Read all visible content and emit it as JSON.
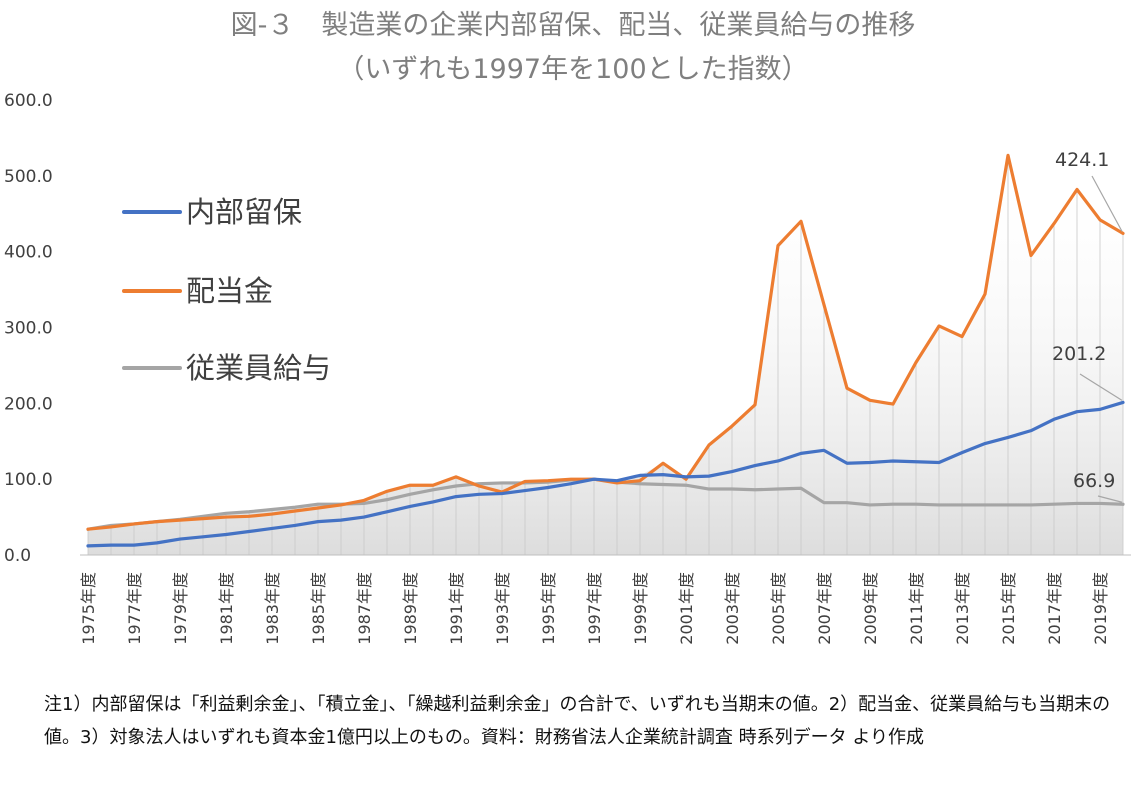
{
  "chart_data": {
    "type": "line",
    "title": "図-３　製造業の企業内部留保、配当、従業員給与の推移",
    "subtitle": "（いずれも1997年を100とした指数）",
    "ylim": [
      0,
      600
    ],
    "yticks": [
      "0.0",
      "100.0",
      "200.0",
      "300.0",
      "400.0",
      "500.0",
      "600.0"
    ],
    "ytick_values": [
      0,
      100,
      200,
      300,
      400,
      500,
      600
    ],
    "x": [
      "1975年度",
      "1976年度",
      "1977年度",
      "1978年度",
      "1979年度",
      "1980年度",
      "1981年度",
      "1982年度",
      "1983年度",
      "1984年度",
      "1985年度",
      "1986年度",
      "1987年度",
      "1988年度",
      "1989年度",
      "1990年度",
      "1991年度",
      "1992年度",
      "1993年度",
      "1994年度",
      "1995年度",
      "1996年度",
      "1997年度",
      "1998年度",
      "1999年度",
      "2000年度",
      "2001年度",
      "2002年度",
      "2003年度",
      "2004年度",
      "2005年度",
      "2006年度",
      "2007年度",
      "2008年度",
      "2009年度",
      "2010年度",
      "2011年度",
      "2012年度",
      "2013年度",
      "2014年度",
      "2015年度",
      "2016年度",
      "2017年度",
      "2018年度",
      "2019年度",
      "2020年度"
    ],
    "xtick_labels_shown": [
      "1975年度",
      "1977年度",
      "1979年度",
      "1981年度",
      "1983年度",
      "1985年度",
      "1987年度",
      "1989年度",
      "1991年度",
      "1993年度",
      "1995年度",
      "1997年度",
      "1999年度",
      "2001年度",
      "2003年度",
      "2005年度",
      "2007年度",
      "2009年度",
      "2011年度",
      "2013年度",
      "2015年度",
      "2017年度",
      "2019年度"
    ],
    "series": [
      {
        "name": "内部留保",
        "color": "#4472c4",
        "values": [
          12,
          13,
          13,
          16,
          21,
          24,
          27,
          31,
          35,
          39,
          44,
          46,
          50,
          57,
          64,
          70,
          77,
          80,
          81,
          85,
          89,
          94,
          100,
          98,
          105,
          106,
          103,
          104,
          110,
          118,
          124,
          134,
          138,
          121,
          122,
          124,
          123,
          122,
          135,
          147,
          155,
          164,
          179,
          189,
          192,
          201.2
        ]
      },
      {
        "name": "配当金",
        "color": "#ed7d31",
        "values": [
          34,
          37,
          41,
          44,
          46,
          48,
          50,
          51,
          54,
          58,
          62,
          66,
          72,
          84,
          92,
          92,
          103,
          91,
          83,
          97,
          98,
          100,
          100,
          95,
          98,
          121,
          100,
          145,
          170,
          198,
          408,
          440,
          330,
          220,
          204,
          199,
          254,
          302,
          288,
          344,
          527,
          395,
          437,
          482,
          442,
          424.1
        ]
      },
      {
        "name": "従業員給与",
        "color": "#a5a5a5",
        "values": [
          34,
          39,
          41,
          44,
          47,
          51,
          55,
          57,
          60,
          63,
          67,
          67,
          68,
          73,
          80,
          86,
          91,
          94,
          95,
          95,
          96,
          99,
          100,
          96,
          94,
          93,
          92,
          87,
          87,
          86,
          87,
          88,
          69,
          69,
          66,
          67,
          67,
          66,
          66,
          66,
          66,
          66,
          67,
          68,
          68,
          66.9
        ]
      }
    ],
    "callouts": [
      "424.1",
      "201.2",
      "66.9"
    ],
    "legend_position": "left-inside",
    "grid": "vertical-lines-at-categories",
    "fill": "gradient-under-lines"
  },
  "note": "注1）内部留保は「利益剰余金」、「積立金」、「繰越利益剰余金」の合計で、いずれも当期末の値。2）配当金、従業員給与も当期末の値。3）対象法人はいずれも資本金1億円以上のもの。資料：財務省法人企業統計調査 時系列データ より作成"
}
